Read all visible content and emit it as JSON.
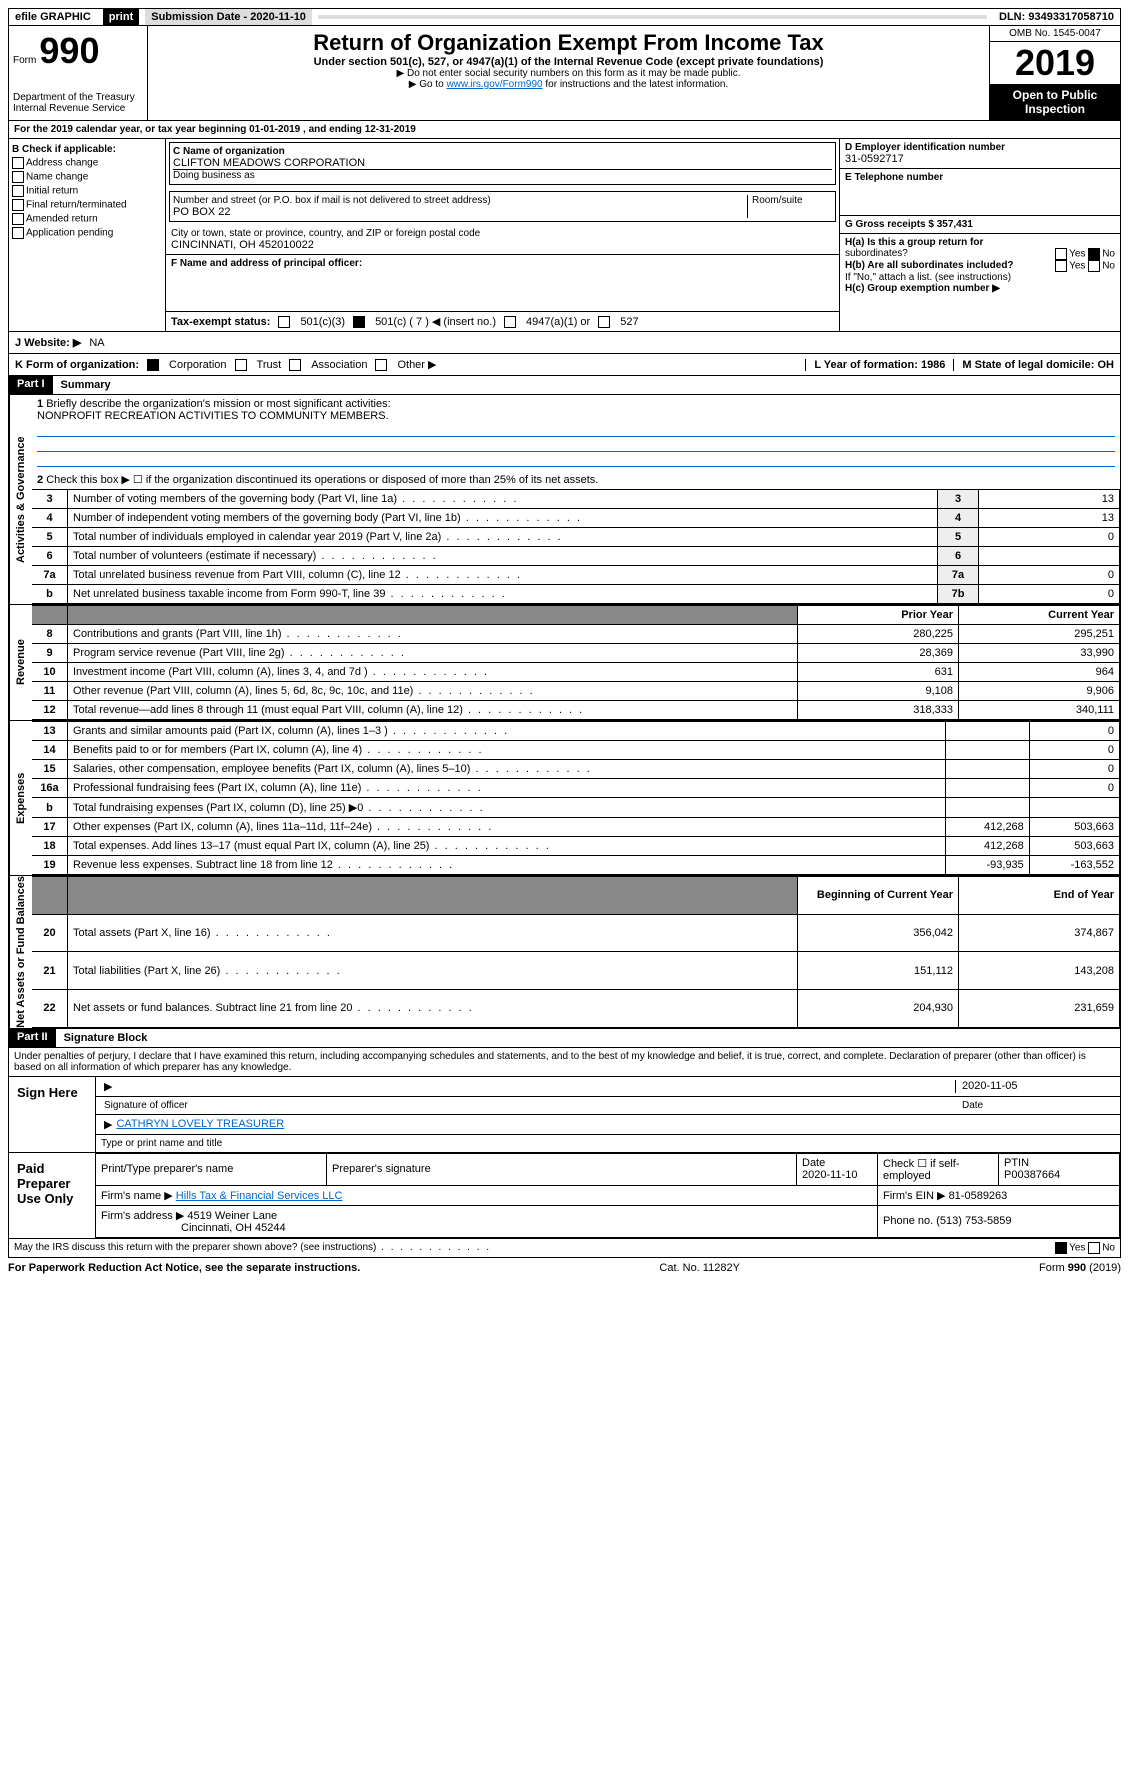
{
  "topbar": {
    "efile": "efile GRAPHIC",
    "print": "print",
    "subdate_lbl": "Submission Date - 2020-11-10",
    "dln": "DLN: 93493317058710"
  },
  "hdr": {
    "form": "Form",
    "num": "990",
    "dept": "Department of the Treasury",
    "irs": "Internal Revenue Service",
    "title": "Return of Organization Exempt From Income Tax",
    "sub": "Under section 501(c), 527, or 4947(a)(1) of the Internal Revenue Code (except private foundations)",
    "note1": "▶ Do not enter social security numbers on this form as it may be made public.",
    "note2a": "▶ Go to ",
    "note2link": "www.irs.gov/Form990",
    "note2b": " for instructions and the latest information.",
    "omb": "OMB No. 1545-0047",
    "year": "2019",
    "open": "Open to Public",
    "insp": "Inspection"
  },
  "a": {
    "text": "For the 2019 calendar year, or tax year beginning 01-01-2019   , and ending 12-31-2019"
  },
  "b": {
    "hdr": "B Check if applicable:",
    "opts": [
      "Address change",
      "Name change",
      "Initial return",
      "Final return/terminated",
      "Amended return",
      "Application pending"
    ]
  },
  "c": {
    "lbl": "C Name of organization",
    "name": "CLIFTON MEADOWS CORPORATION",
    "dba": "Doing business as",
    "addr_lbl": "Number and street (or P.O. box if mail is not delivered to street address)",
    "room": "Room/suite",
    "addr": "PO BOX 22",
    "city_lbl": "City or town, state or province, country, and ZIP or foreign postal code",
    "city": "CINCINNATI, OH  452010022"
  },
  "d": {
    "lbl": "D Employer identification number",
    "val": "31-0592717"
  },
  "e": {
    "lbl": "E Telephone number"
  },
  "f": {
    "lbl": "F Name and address of principal officer:"
  },
  "g": {
    "lbl": "G Gross receipts $ 357,431"
  },
  "h": {
    "a": "H(a)  Is this a group return for",
    "a2": "subordinates?",
    "b": "H(b)  Are all subordinates included?",
    "bnote": "If \"No,\" attach a list. (see instructions)",
    "c": "H(c)  Group exemption number ▶",
    "yes": "Yes",
    "no": "No"
  },
  "i": {
    "lbl": "Tax-exempt status:",
    "o1": "501(c)(3)",
    "o2": "501(c) ( 7 ) ◀ (insert no.)",
    "o3": "4947(a)(1) or",
    "o4": "527"
  },
  "j": {
    "lbl": "J   Website: ▶",
    "val": "NA"
  },
  "k": {
    "lbl": "K Form of organization:",
    "o1": "Corporation",
    "o2": "Trust",
    "o3": "Association",
    "o4": "Other ▶"
  },
  "l": {
    "lbl": "L Year of formation: 1986"
  },
  "m": {
    "lbl": "M State of legal domicile: OH"
  },
  "p1": {
    "hdr": "Part I",
    "title": "Summary",
    "side_ag": "Activities & Governance",
    "side_rev": "Revenue",
    "side_exp": "Expenses",
    "side_na": "Net Assets or Fund Balances",
    "l1": "Briefly describe the organization's mission or most significant activities:",
    "l1v": "NONPROFIT RECREATION ACTIVITIES TO COMMUNITY MEMBERS.",
    "l2": "Check this box ▶ ☐  if the organization discontinued its operations or disposed of more than 25% of its net assets.",
    "rows_ag": [
      {
        "n": "3",
        "t": "Number of voting members of the governing body (Part VI, line 1a)",
        "b": "3",
        "v": "13"
      },
      {
        "n": "4",
        "t": "Number of independent voting members of the governing body (Part VI, line 1b)",
        "b": "4",
        "v": "13"
      },
      {
        "n": "5",
        "t": "Total number of individuals employed in calendar year 2019 (Part V, line 2a)",
        "b": "5",
        "v": "0"
      },
      {
        "n": "6",
        "t": "Total number of volunteers (estimate if necessary)",
        "b": "6",
        "v": ""
      },
      {
        "n": "7a",
        "t": "Total unrelated business revenue from Part VIII, column (C), line 12",
        "b": "7a",
        "v": "0"
      },
      {
        "n": "b",
        "t": "Net unrelated business taxable income from Form 990-T, line 39",
        "b": "7b",
        "v": "0"
      }
    ],
    "col_py": "Prior Year",
    "col_cy": "Current Year",
    "rows_rev": [
      {
        "n": "8",
        "t": "Contributions and grants (Part VIII, line 1h)",
        "p": "280,225",
        "c": "295,251"
      },
      {
        "n": "9",
        "t": "Program service revenue (Part VIII, line 2g)",
        "p": "28,369",
        "c": "33,990"
      },
      {
        "n": "10",
        "t": "Investment income (Part VIII, column (A), lines 3, 4, and 7d )",
        "p": "631",
        "c": "964"
      },
      {
        "n": "11",
        "t": "Other revenue (Part VIII, column (A), lines 5, 6d, 8c, 9c, 10c, and 11e)",
        "p": "9,108",
        "c": "9,906"
      },
      {
        "n": "12",
        "t": "Total revenue—add lines 8 through 11 (must equal Part VIII, column (A), line 12)",
        "p": "318,333",
        "c": "340,111"
      }
    ],
    "rows_exp": [
      {
        "n": "13",
        "t": "Grants and similar amounts paid (Part IX, column (A), lines 1–3 )",
        "p": "",
        "c": "0"
      },
      {
        "n": "14",
        "t": "Benefits paid to or for members (Part IX, column (A), line 4)",
        "p": "",
        "c": "0"
      },
      {
        "n": "15",
        "t": "Salaries, other compensation, employee benefits (Part IX, column (A), lines 5–10)",
        "p": "",
        "c": "0"
      },
      {
        "n": "16a",
        "t": "Professional fundraising fees (Part IX, column (A), line 11e)",
        "p": "",
        "c": "0"
      },
      {
        "n": "b",
        "t": "Total fundraising expenses (Part IX, column (D), line 25) ▶0",
        "p": "",
        "c": ""
      },
      {
        "n": "17",
        "t": "Other expenses (Part IX, column (A), lines 11a–11d, 11f–24e)",
        "p": "412,268",
        "c": "503,663"
      },
      {
        "n": "18",
        "t": "Total expenses. Add lines 13–17 (must equal Part IX, column (A), line 25)",
        "p": "412,268",
        "c": "503,663"
      },
      {
        "n": "19",
        "t": "Revenue less expenses. Subtract line 18 from line 12",
        "p": "-93,935",
        "c": "-163,552"
      }
    ],
    "col_boy": "Beginning of Current Year",
    "col_eoy": "End of Year",
    "rows_na": [
      {
        "n": "20",
        "t": "Total assets (Part X, line 16)",
        "p": "356,042",
        "c": "374,867"
      },
      {
        "n": "21",
        "t": "Total liabilities (Part X, line 26)",
        "p": "151,112",
        "c": "143,208"
      },
      {
        "n": "22",
        "t": "Net assets or fund balances. Subtract line 21 from line 20",
        "p": "204,930",
        "c": "231,659"
      }
    ]
  },
  "p2": {
    "hdr": "Part II",
    "title": "Signature Block",
    "decl": "Under penalties of perjury, I declare that I have examined this return, including accompanying schedules and statements, and to the best of my knowledge and belief, it is true, correct, and complete. Declaration of preparer (other than officer) is based on all information of which preparer has any knowledge.",
    "sign": "Sign Here",
    "sigoff": "Signature of officer",
    "date": "Date",
    "datev": "2020-11-05",
    "name": "CATHRYN LOVELY  TREASURER",
    "nlab": "Type or print name and title",
    "paid": "Paid Preparer Use Only",
    "pp_name": "Print/Type preparer's name",
    "pp_sig": "Preparer's signature",
    "pp_date": "Date",
    "pp_datev": "2020-11-10",
    "pp_chk": "Check ☐ if self-employed",
    "ptin": "PTIN",
    "ptinv": "P00387664",
    "firm": "Firm's name   ▶",
    "firmv": "Hills Tax & Financial Services LLC",
    "ein": "Firm's EIN ▶",
    "einv": "81-0589263",
    "faddr": "Firm's address ▶",
    "faddrv": "4519 Weiner Lane",
    "fcity": "Cincinnati, OH  45244",
    "phone": "Phone no. (513) 753-5859",
    "discuss": "May the IRS discuss this return with the preparer shown above? (see instructions)",
    "yes": "Yes",
    "no": "No"
  },
  "footer": {
    "l": "For Paperwork Reduction Act Notice, see the separate instructions.",
    "m": "Cat. No. 11282Y",
    "r": "Form 990 (2019)"
  }
}
